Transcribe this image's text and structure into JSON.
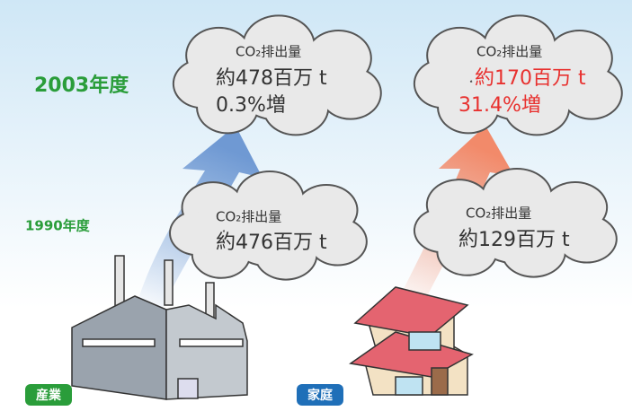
{
  "years": {
    "current": "2003年度",
    "base": "1990年度"
  },
  "sectors": [
    {
      "label": "産業",
      "current": {
        "heading": "CO₂排出量",
        "amount": "約478百万 t",
        "change": "0.3%増"
      },
      "base": {
        "heading": "CO₂排出量",
        "amount": "約476百万 t"
      }
    },
    {
      "label": "家庭",
      "current": {
        "heading": "CO₂排出量",
        "amount": "約170百万 t",
        "change": "31.4%増"
      },
      "base": {
        "heading": "CO₂排出量",
        "amount": "約129百万 t"
      }
    }
  ]
}
